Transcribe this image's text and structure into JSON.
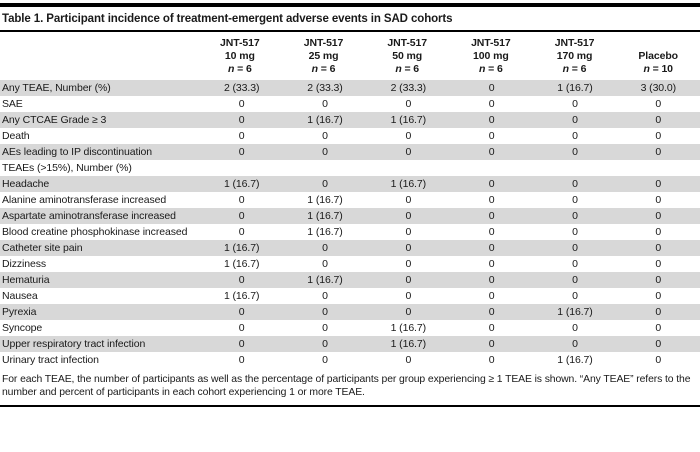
{
  "colors": {
    "rule": "#000000",
    "shaded_row": "#d8d8d8",
    "text": "#1a1a1a",
    "background": "#ffffff"
  },
  "table": {
    "title": "Table 1. Participant incidence of treatment-emergent adverse events in SAD cohorts",
    "columns": [
      {
        "drug": "JNT-517",
        "dose": "10 mg",
        "n_sym": "n",
        "n_val": " = 6"
      },
      {
        "drug": "JNT-517",
        "dose": "25 mg",
        "n_sym": "n",
        "n_val": " = 6"
      },
      {
        "drug": "JNT-517",
        "dose": "50 mg",
        "n_sym": "n",
        "n_val": " = 6"
      },
      {
        "drug": "JNT-517",
        "dose": "100 mg",
        "n_sym": "n",
        "n_val": " = 6"
      },
      {
        "drug": "JNT-517",
        "dose": "170 mg",
        "n_sym": "n",
        "n_val": " = 6"
      },
      {
        "drug": "",
        "dose": "Placebo",
        "n_sym": "n",
        "n_val": " = 10"
      }
    ],
    "rows": [
      {
        "label": "Any TEAE, Number (%)",
        "values": [
          "2 (33.3)",
          "2 (33.3)",
          "2 (33.3)",
          "0",
          "1 (16.7)",
          "3 (30.0)"
        ],
        "shaded": true
      },
      {
        "label": "SAE",
        "values": [
          "0",
          "0",
          "0",
          "0",
          "0",
          "0"
        ],
        "shaded": false
      },
      {
        "label": "Any CTCAE Grade ≥ 3",
        "values": [
          "0",
          "1 (16.7)",
          "1 (16.7)",
          "0",
          "0",
          "0"
        ],
        "shaded": true
      },
      {
        "label": "Death",
        "values": [
          "0",
          "0",
          "0",
          "0",
          "0",
          "0"
        ],
        "shaded": false
      },
      {
        "label": "AEs leading to IP discontinuation",
        "values": [
          "0",
          "0",
          "0",
          "0",
          "0",
          "0"
        ],
        "shaded": true
      },
      {
        "label": "TEAEs (>15%), Number (%)",
        "values": [
          "",
          "",
          "",
          "",
          "",
          ""
        ],
        "shaded": false
      },
      {
        "label": "Headache",
        "values": [
          "1 (16.7)",
          "0",
          "1 (16.7)",
          "0",
          "0",
          "0"
        ],
        "shaded": true
      },
      {
        "label": "Alanine aminotransferase increased",
        "values": [
          "0",
          "1 (16.7)",
          "0",
          "0",
          "0",
          "0"
        ],
        "shaded": false
      },
      {
        "label": "Aspartate aminotransferase increased",
        "values": [
          "0",
          "1 (16.7)",
          "0",
          "0",
          "0",
          "0"
        ],
        "shaded": true
      },
      {
        "label": "Blood creatine phosphokinase increased",
        "values": [
          "0",
          "1 (16.7)",
          "0",
          "0",
          "0",
          "0"
        ],
        "shaded": false
      },
      {
        "label": "Catheter site pain",
        "values": [
          "1 (16.7)",
          "0",
          "0",
          "0",
          "0",
          "0"
        ],
        "shaded": true
      },
      {
        "label": "Dizziness",
        "values": [
          "1 (16.7)",
          "0",
          "0",
          "0",
          "0",
          "0"
        ],
        "shaded": false
      },
      {
        "label": "Hematuria",
        "values": [
          "0",
          "1 (16.7)",
          "0",
          "0",
          "0",
          "0"
        ],
        "shaded": true
      },
      {
        "label": "Nausea",
        "values": [
          "1 (16.7)",
          "0",
          "0",
          "0",
          "0",
          "0"
        ],
        "shaded": false
      },
      {
        "label": "Pyrexia",
        "values": [
          "0",
          "0",
          "0",
          "0",
          "1 (16.7)",
          "0"
        ],
        "shaded": true
      },
      {
        "label": "Syncope",
        "values": [
          "0",
          "0",
          "1 (16.7)",
          "0",
          "0",
          "0"
        ],
        "shaded": false
      },
      {
        "label": "Upper respiratory tract infection",
        "values": [
          "0",
          "0",
          "1 (16.7)",
          "0",
          "0",
          "0"
        ],
        "shaded": true
      },
      {
        "label": "Urinary tract infection",
        "values": [
          "0",
          "0",
          "0",
          "0",
          "1 (16.7)",
          "0"
        ],
        "shaded": false
      }
    ],
    "footnote": "For each TEAE, the number of participants as well as the percentage of participants per group experiencing ≥ 1 TEAE is shown. “Any TEAE” refers to the number and percent of participants in each cohort experiencing 1 or more TEAE."
  }
}
